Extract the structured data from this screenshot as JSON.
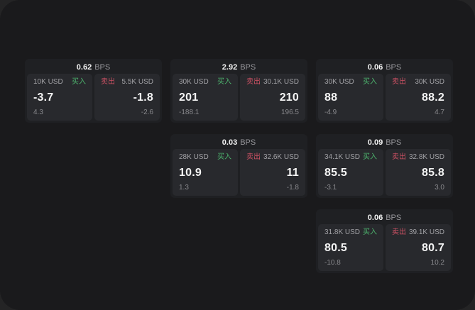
{
  "labels": {
    "bps_unit": "BPS",
    "buy": "买入",
    "sell": "卖出"
  },
  "colors": {
    "outer_bg": "#242425",
    "window_bg": "#1a1a1c",
    "card_bg": "#1f2023",
    "panel_bg": "#28292d",
    "buy_green": "#4db36d",
    "sell_red": "#cd5164"
  },
  "cards": [
    {
      "bps": "0.62",
      "buy": {
        "amount": "10K USD",
        "price": "-3.7",
        "change": "4.3"
      },
      "sell": {
        "amount": "5.5K USD",
        "price": "-1.8",
        "change": "-2.6"
      }
    },
    {
      "bps": "2.92",
      "buy": {
        "amount": "30K USD",
        "price": "201",
        "change": "-188.1"
      },
      "sell": {
        "amount": "30.1K USD",
        "price": "210",
        "change": "196.5"
      }
    },
    {
      "bps": "0.06",
      "buy": {
        "amount": "30K USD",
        "price": "88",
        "change": "-4.9"
      },
      "sell": {
        "amount": "30K USD",
        "price": "88.2",
        "change": "4.7"
      }
    },
    {
      "bps": "0.03",
      "buy": {
        "amount": "28K USD",
        "price": "10.9",
        "change": "1.3"
      },
      "sell": {
        "amount": "32.6K USD",
        "price": "11",
        "change": "-1.8"
      }
    },
    {
      "bps": "0.09",
      "buy": {
        "amount": "34.1K USD",
        "price": "85.5",
        "change": "-3.1"
      },
      "sell": {
        "amount": "32.8K USD",
        "price": "85.8",
        "change": "3.0"
      }
    },
    {
      "bps": "0.06",
      "buy": {
        "amount": "31.8K USD",
        "price": "80.5",
        "change": "-10.8"
      },
      "sell": {
        "amount": "39.1K USD",
        "price": "80.7",
        "change": "10.2"
      }
    }
  ]
}
